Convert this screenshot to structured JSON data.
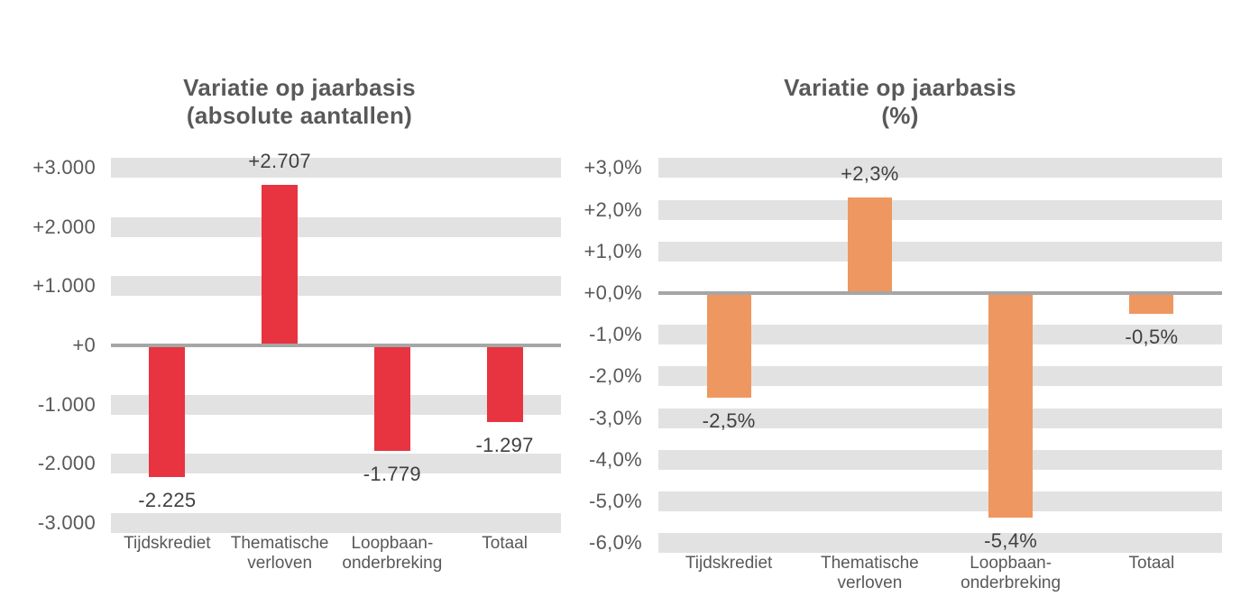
{
  "colors": {
    "background": "#ffffff",
    "grid_band": "#e2e2e2",
    "zero_line": "#a6a6a6",
    "title_text": "#595959",
    "tick_text": "#595959",
    "category_text": "#595959",
    "data_label_text": "#404040",
    "bar_red": "#e73440",
    "bar_orange": "#ef9760"
  },
  "chart_data": [
    {
      "type": "bar",
      "title": "Variatie op jaarbasis (absolute aantallen)",
      "title_line1": "Variatie op jaarbasis",
      "title_line2": "(absolute aantallen)",
      "xlabel": "",
      "ylabel": "",
      "ylim": [
        -3000,
        3000
      ],
      "grid": true,
      "legend": null,
      "bar_color": "#e73440",
      "categories": [
        "Tijdskrediet",
        "Thematische\nverloven",
        "Loopbaan-\nonderbreking",
        "Totaal"
      ],
      "values": [
        -2225,
        2707,
        -1779,
        -1297
      ],
      "data_labels": [
        "-2.225",
        "+2.707",
        "-1.779",
        "-1.297"
      ],
      "y_ticks": [
        {
          "value": 3000,
          "label": "+3.000"
        },
        {
          "value": 2000,
          "label": "+2.000"
        },
        {
          "value": 1000,
          "label": "+1.000"
        },
        {
          "value": 0,
          "label": "+0"
        },
        {
          "value": -1000,
          "label": "-1.000"
        },
        {
          "value": -2000,
          "label": "-2.000"
        },
        {
          "value": -3000,
          "label": "-3.000"
        }
      ]
    },
    {
      "type": "bar",
      "title": "Variatie op jaarbasis (%)",
      "title_line1": "Variatie op jaarbasis",
      "title_line2": "(%)",
      "xlabel": "",
      "ylabel": "",
      "ylim": [
        -6,
        3
      ],
      "grid": true,
      "legend": null,
      "bar_color": "#ef9760",
      "categories": [
        "Tijdskrediet",
        "Thematische\nverloven",
        "Loopbaan-\nonderbreking",
        "Totaal"
      ],
      "values": [
        -2.5,
        2.3,
        -5.4,
        -0.5
      ],
      "data_labels": [
        "-2,5%",
        "+2,3%",
        "-5,4%",
        "-0,5%"
      ],
      "y_ticks": [
        {
          "value": 3,
          "label": "+3,0%"
        },
        {
          "value": 2,
          "label": "+2,0%"
        },
        {
          "value": 1,
          "label": "+1,0%"
        },
        {
          "value": 0,
          "label": "+0,0%"
        },
        {
          "value": -1,
          "label": "-1,0%"
        },
        {
          "value": -2,
          "label": "-2,0%"
        },
        {
          "value": -3,
          "label": "-3,0%"
        },
        {
          "value": -4,
          "label": "-4,0%"
        },
        {
          "value": -5,
          "label": "-5,0%"
        },
        {
          "value": -6,
          "label": "-6,0%"
        }
      ]
    }
  ]
}
